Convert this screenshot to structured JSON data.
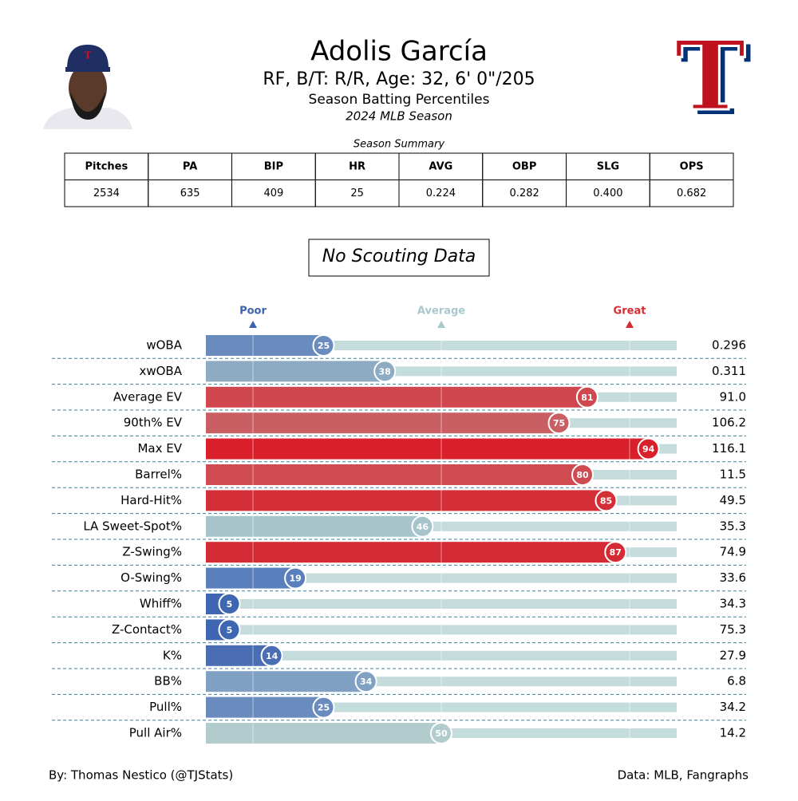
{
  "header": {
    "title": "Adolis García",
    "subtitle": "RF, B/T: R/R, Age: 32, 6' 0\"/205",
    "description": "Season Batting Percentiles",
    "season": "2024 MLB Season"
  },
  "table": {
    "caption": "Season Summary",
    "headers": [
      "Pitches",
      "PA",
      "BIP",
      "HR",
      "AVG",
      "OBP",
      "SLG",
      "OPS"
    ],
    "rows": [
      [
        "2534",
        "635",
        "409",
        "25",
        "0.224",
        "0.282",
        "0.400",
        "0.682"
      ]
    ]
  },
  "note": "No Scouting Data",
  "chart_data": {
    "type": "bar",
    "orientation": "horizontal",
    "categories": [
      "wOBA",
      "xwOBA",
      "Average EV",
      "90th% EV",
      "Max EV",
      "Barrel%",
      "Hard-Hit%",
      "LA Sweet-Spot%",
      "Z-Swing%",
      "O-Swing%",
      "Whiff%",
      "Z-Contact%",
      "K%",
      "BB%",
      "Pull%",
      "Pull Air%"
    ],
    "values": [
      25,
      38,
      81,
      75,
      94,
      80,
      85,
      46,
      87,
      19,
      5,
      5,
      14,
      34,
      25,
      50
    ],
    "colors": [
      "#6a8bbd",
      "#8eabc4",
      "#d0474f",
      "#c95f63",
      "#d91f2a",
      "#d04a51",
      "#d42f37",
      "#a8c4cb",
      "#d32a33",
      "#5a7fbd",
      "#3f67b1",
      "#3f67b1",
      "#4a6db4",
      "#80a1c3",
      "#6a8bbd",
      "#b2cccd"
    ],
    "stat_values": [
      "0.296",
      "0.311",
      "91.0",
      "106.2",
      "116.1",
      "11.5",
      "49.5",
      "35.3",
      "74.9",
      "33.6",
      "34.3",
      "75.3",
      "27.9",
      "6.8",
      "34.2",
      "14.2"
    ],
    "xlim": [
      0,
      100
    ],
    "markers": [
      {
        "label": "Poor",
        "value": 10,
        "color": "#3a62ad"
      },
      {
        "label": "Average",
        "value": 50,
        "color": "#a8c8cc"
      },
      {
        "label": "Great",
        "value": 90,
        "color": "#d62a33"
      }
    ]
  },
  "footer": {
    "left": "By: Thomas Nestico (@TJStats)",
    "right": "Data: MLB, Fangraphs"
  }
}
